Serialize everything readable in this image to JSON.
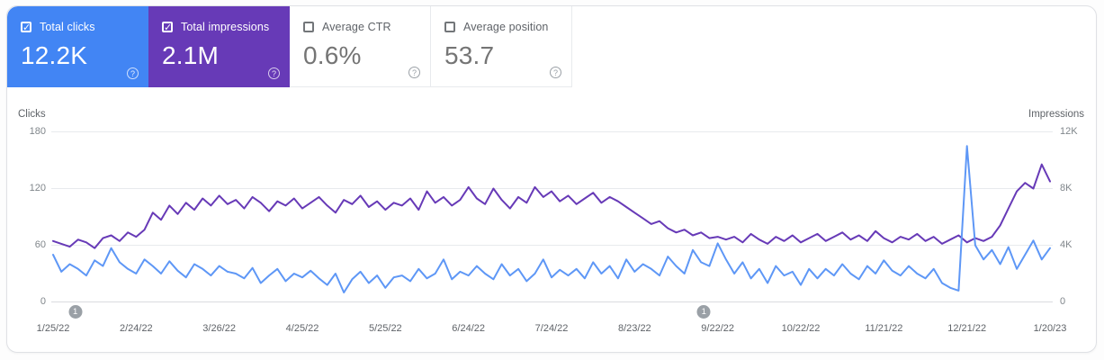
{
  "icons": {
    "help": "?",
    "check": "✓"
  },
  "colors": {
    "clicks_card": "#4285f4",
    "impressions_card": "#673ab7",
    "clicks_line": "#5e97f6",
    "impressions_line": "#673ab7",
    "gridline": "#e8eaed",
    "axis_line": "#dadce0",
    "annotation": "#9aa0a6"
  },
  "cards": [
    {
      "label": "Total clicks",
      "value": "12.2K",
      "checked": true
    },
    {
      "label": "Total impressions",
      "value": "2.1M",
      "checked": true
    },
    {
      "label": "Average CTR",
      "value": "0.6%",
      "checked": false
    },
    {
      "label": "Average position",
      "value": "53.7",
      "checked": false
    }
  ],
  "chart_data": {
    "type": "line",
    "grid": true,
    "legend": "none",
    "left_axis": {
      "title": "Clicks",
      "ticks": [
        "180",
        "120",
        "60",
        "0"
      ],
      "max": 180
    },
    "right_axis": {
      "title": "Impressions",
      "ticks": [
        "12K",
        "8K",
        "4K",
        "0"
      ],
      "max": 12
    },
    "x_ticks": [
      "1/25/22",
      "2/24/22",
      "3/26/22",
      "4/25/22",
      "5/25/22",
      "6/24/22",
      "7/24/22",
      "8/23/22",
      "9/22/22",
      "10/22/22",
      "11/21/22",
      "12/21/22",
      "1/20/23"
    ],
    "x_tick_interval_days": 30,
    "total_days": 360,
    "annotations": [
      {
        "label": "1",
        "day": 8
      },
      {
        "label": "1",
        "day": 235
      }
    ],
    "series": [
      {
        "name": "Total clicks",
        "axis": "left",
        "unit": "clicks",
        "values": [
          50,
          32,
          40,
          35,
          28,
          44,
          38,
          57,
          42,
          35,
          30,
          45,
          38,
          30,
          43,
          33,
          26,
          40,
          35,
          28,
          38,
          32,
          30,
          25,
          36,
          20,
          28,
          35,
          22,
          30,
          26,
          33,
          25,
          18,
          30,
          10,
          24,
          32,
          20,
          28,
          15,
          26,
          28,
          22,
          35,
          25,
          30,
          45,
          24,
          32,
          28,
          38,
          30,
          24,
          40,
          28,
          35,
          22,
          30,
          45,
          26,
          34,
          28,
          35,
          25,
          42,
          30,
          38,
          25,
          45,
          32,
          40,
          35,
          28,
          48,
          38,
          30,
          55,
          42,
          38,
          62,
          45,
          30,
          42,
          25,
          35,
          20,
          38,
          28,
          32,
          18,
          35,
          25,
          35,
          28,
          40,
          30,
          24,
          38,
          30,
          44,
          33,
          28,
          38,
          30,
          25,
          35,
          20,
          15,
          12,
          165,
          60,
          45,
          55,
          40,
          58,
          35,
          50,
          65,
          45,
          57
        ]
      },
      {
        "name": "Total impressions",
        "axis": "right",
        "unit": "thousands",
        "values": [
          4.3,
          4.1,
          3.9,
          4.4,
          4.2,
          3.8,
          4.5,
          4.7,
          4.3,
          4.9,
          4.6,
          5.1,
          6.3,
          5.8,
          6.8,
          6.2,
          7.0,
          6.5,
          7.3,
          6.8,
          7.5,
          6.9,
          7.2,
          6.6,
          7.4,
          7.0,
          6.4,
          7.1,
          6.8,
          7.3,
          6.6,
          7.0,
          7.4,
          6.8,
          6.3,
          7.2,
          6.9,
          7.5,
          6.7,
          7.1,
          6.5,
          7.0,
          6.8,
          7.3,
          6.5,
          7.8,
          7.0,
          7.4,
          6.8,
          7.2,
          8.1,
          7.3,
          6.9,
          8.0,
          7.2,
          6.6,
          7.4,
          7.0,
          8.1,
          7.4,
          7.8,
          7.1,
          7.5,
          6.9,
          7.3,
          7.7,
          7.0,
          7.4,
          7.1,
          6.7,
          6.3,
          5.9,
          5.5,
          5.7,
          5.2,
          4.9,
          5.1,
          4.7,
          4.9,
          4.5,
          4.6,
          4.4,
          4.6,
          4.2,
          4.8,
          4.4,
          4.1,
          4.6,
          4.3,
          4.7,
          4.2,
          4.5,
          4.8,
          4.3,
          4.6,
          4.9,
          4.4,
          4.7,
          4.3,
          5.0,
          4.5,
          4.2,
          4.6,
          4.4,
          4.8,
          4.3,
          4.6,
          4.1,
          4.4,
          4.7,
          4.2,
          4.5,
          4.3,
          4.6,
          5.4,
          6.6,
          7.8,
          8.4,
          8.0,
          9.7,
          8.5
        ]
      }
    ]
  }
}
